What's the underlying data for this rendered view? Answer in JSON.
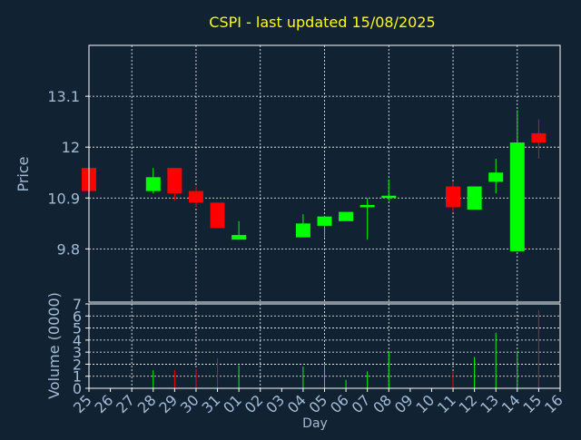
{
  "colors": {
    "background": "#112233",
    "plot_border": "#ffffff",
    "grid": "#ffffff",
    "title": "#ffff00",
    "label": "#a3bbd4",
    "up": "#00ff00",
    "down": "#ff0000"
  },
  "chart_data": [
    {
      "type": "candlestick",
      "title": "CSPI - last updated 15/08/2025",
      "ylabel": "Price",
      "ylim": [
        8.65,
        14.2
      ],
      "yticks": [
        9.8,
        10.9,
        12,
        13.1
      ],
      "ytick_labels": [
        "9.8",
        "10.9",
        "12",
        "13.1"
      ],
      "grid": true,
      "candles": [
        {
          "day": "25",
          "open": 11.55,
          "high": 11.55,
          "low": 11.05,
          "close": 11.05
        },
        {
          "day": "28",
          "open": 11.05,
          "high": 11.55,
          "low": 11.0,
          "close": 11.35
        },
        {
          "day": "29",
          "open": 11.55,
          "high": 11.55,
          "low": 10.85,
          "close": 11.0
        },
        {
          "day": "30",
          "open": 11.05,
          "high": 11.15,
          "low": 10.7,
          "close": 10.8
        },
        {
          "day": "31",
          "open": 10.8,
          "high": 10.8,
          "low": 10.25,
          "close": 10.25
        },
        {
          "day": "01",
          "open": 10.0,
          "high": 10.4,
          "low": 10.0,
          "close": 10.1
        },
        {
          "day": "04",
          "open": 10.05,
          "high": 10.55,
          "low": 10.05,
          "close": 10.35
        },
        {
          "day": "05",
          "open": 10.3,
          "high": 10.5,
          "low": 10.05,
          "close": 10.5
        },
        {
          "day": "06",
          "open": 10.4,
          "high": 10.6,
          "low": 10.4,
          "close": 10.6
        },
        {
          "day": "07",
          "open": 10.7,
          "high": 10.9,
          "low": 10.0,
          "close": 10.75
        },
        {
          "day": "08",
          "open": 10.9,
          "high": 11.3,
          "low": 10.85,
          "close": 10.95
        },
        {
          "day": "11",
          "open": 11.15,
          "high": 11.25,
          "low": 10.6,
          "close": 10.7
        },
        {
          "day": "12",
          "open": 10.65,
          "high": 11.15,
          "low": 10.65,
          "close": 11.15
        },
        {
          "day": "13",
          "open": 11.25,
          "high": 11.75,
          "low": 11.0,
          "close": 11.45
        },
        {
          "day": "14",
          "open": 9.75,
          "high": 12.8,
          "low": 9.75,
          "close": 12.1
        },
        {
          "day": "15",
          "open": 12.3,
          "high": 12.6,
          "low": 11.75,
          "close": 12.1
        }
      ]
    },
    {
      "type": "bar",
      "ylabel": "Volume (0000)",
      "xlabel": "Day",
      "ylim": [
        0,
        7
      ],
      "yticks": [
        0,
        1,
        2,
        3,
        4,
        5,
        6,
        7
      ],
      "ytick_labels": [
        "0",
        "1",
        "2",
        "3",
        "4",
        "5",
        "6",
        "7"
      ],
      "categories": [
        "25",
        "26",
        "27",
        "28",
        "29",
        "30",
        "31",
        "01",
        "02",
        "03",
        "04",
        "05",
        "06",
        "07",
        "08",
        "09",
        "10",
        "11",
        "12",
        "13",
        "14",
        "15",
        "16"
      ],
      "bars": [
        {
          "day": "28",
          "value": 1.5,
          "direction": "up"
        },
        {
          "day": "29",
          "value": 1.5,
          "direction": "down"
        },
        {
          "day": "30",
          "value": 1.6,
          "direction": "down"
        },
        {
          "day": "31",
          "value": 2.5,
          "direction": "down"
        },
        {
          "day": "01",
          "value": 1.9,
          "direction": "up"
        },
        {
          "day": "04",
          "value": 1.8,
          "direction": "up"
        },
        {
          "day": "05",
          "value": 2.0,
          "direction": "up"
        },
        {
          "day": "06",
          "value": 0.7,
          "direction": "up"
        },
        {
          "day": "07",
          "value": 1.4,
          "direction": "up"
        },
        {
          "day": "08",
          "value": 3.1,
          "direction": "up"
        },
        {
          "day": "11",
          "value": 1.4,
          "direction": "down"
        },
        {
          "day": "12",
          "value": 2.6,
          "direction": "up"
        },
        {
          "day": "13",
          "value": 4.6,
          "direction": "up"
        },
        {
          "day": "14",
          "value": 3.1,
          "direction": "up"
        },
        {
          "day": "15",
          "value": 6.5,
          "direction": "down"
        }
      ]
    }
  ]
}
